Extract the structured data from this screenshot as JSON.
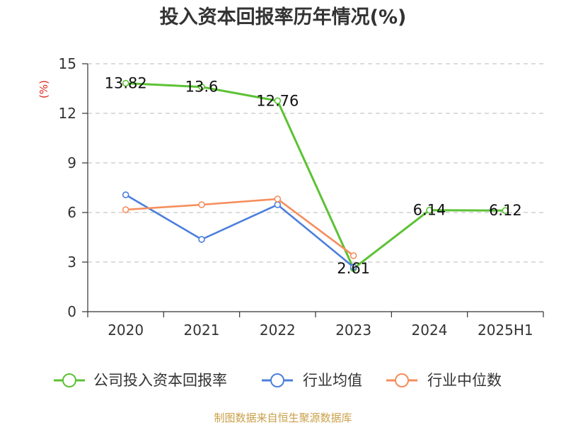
{
  "footer": "制图数据来自恒生聚源数据库",
  "colors": {
    "ylabel": "#e0261e",
    "footer": "#c9a04a",
    "axis": "#333333",
    "grid": "#c8c8c8"
  },
  "chart_data": {
    "type": "line",
    "title": "投入资本回报率历年情况(%)",
    "xlabel": "",
    "ylabel": "(%)",
    "categories": [
      "2020",
      "2021",
      "2022",
      "2023",
      "2024",
      "2025H1"
    ],
    "ylim": [
      0,
      15
    ],
    "yticks": [
      0,
      3,
      6,
      9,
      12,
      15
    ],
    "grid": true,
    "legend_position": "bottom",
    "series": [
      {
        "name": "公司投入资本回报率",
        "values": [
          13.82,
          13.6,
          12.76,
          2.61,
          6.14,
          6.12
        ],
        "show_labels": true,
        "color": "#5cc234"
      },
      {
        "name": "行业均值",
        "values": [
          7.07,
          4.37,
          6.47,
          2.7,
          null,
          null
        ],
        "show_labels": false,
        "color": "#4b7fdc"
      },
      {
        "name": "行业中位数",
        "values": [
          6.17,
          6.47,
          6.82,
          3.39,
          null,
          null
        ],
        "show_labels": false,
        "color": "#f58e5c"
      }
    ]
  }
}
